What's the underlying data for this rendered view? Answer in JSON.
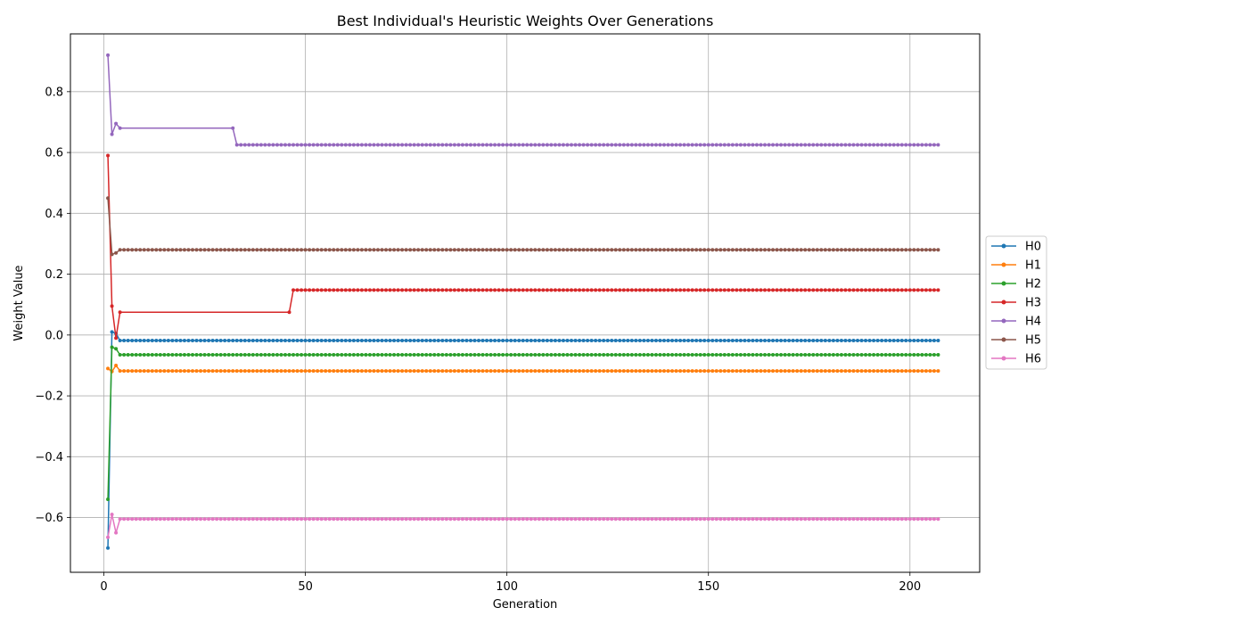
{
  "chart_data": {
    "type": "line",
    "title": "Best Individual's Heuristic Weights Over Generations",
    "xlabel": "Generation",
    "ylabel": "Weight Value",
    "xlim": [
      -8.3,
      217.3
    ],
    "ylim": [
      -0.78,
      0.99
    ],
    "xticks": [
      0,
      50,
      100,
      150,
      200
    ],
    "yticks": [
      -0.6,
      -0.4,
      -0.2,
      0.0,
      0.2,
      0.4,
      0.6,
      0.8
    ],
    "grid": true,
    "legend_position": "center-right",
    "n_generations": 207,
    "series": [
      {
        "name": "H0",
        "color": "#1f77b4",
        "points": [
          [
            1,
            -0.7
          ],
          [
            2,
            0.01
          ],
          [
            3,
            0.005
          ],
          [
            4,
            -0.018
          ]
        ],
        "steady": -0.018
      },
      {
        "name": "H1",
        "color": "#ff7f0e",
        "points": [
          [
            1,
            -0.11
          ],
          [
            2,
            -0.12
          ],
          [
            3,
            -0.1
          ],
          [
            4,
            -0.118
          ]
        ],
        "steady": -0.118
      },
      {
        "name": "H2",
        "color": "#2ca02c",
        "points": [
          [
            1,
            -0.54
          ],
          [
            2,
            -0.04
          ],
          [
            3,
            -0.045
          ],
          [
            4,
            -0.065
          ]
        ],
        "steady": -0.065
      },
      {
        "name": "H3",
        "color": "#d62728",
        "points": [
          [
            1,
            0.59
          ],
          [
            2,
            0.095
          ],
          [
            3,
            -0.01
          ],
          [
            4,
            0.075
          ],
          [
            46,
            0.075
          ],
          [
            47,
            0.148
          ]
        ],
        "steady": 0.148
      },
      {
        "name": "H4",
        "color": "#9467bd",
        "points": [
          [
            1,
            0.92
          ],
          [
            2,
            0.66
          ],
          [
            3,
            0.695
          ],
          [
            4,
            0.68
          ],
          [
            32,
            0.68
          ],
          [
            33,
            0.625
          ]
        ],
        "steady": 0.625
      },
      {
        "name": "H5",
        "color": "#8c564b",
        "points": [
          [
            1,
            0.45
          ],
          [
            2,
            0.265
          ],
          [
            3,
            0.27
          ],
          [
            4,
            0.28
          ]
        ],
        "steady": 0.28
      },
      {
        "name": "H6",
        "color": "#e377c2",
        "points": [
          [
            1,
            -0.665
          ],
          [
            2,
            -0.59
          ],
          [
            3,
            -0.65
          ],
          [
            4,
            -0.605
          ]
        ],
        "steady": -0.605
      }
    ]
  }
}
